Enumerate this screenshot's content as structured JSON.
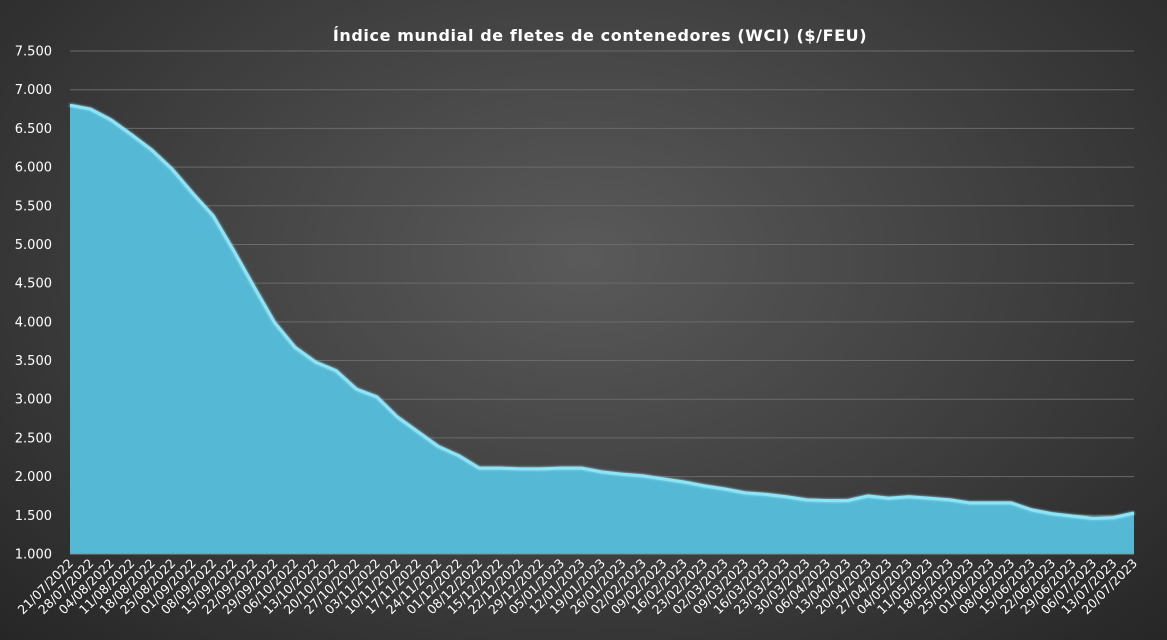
{
  "chart_data": {
    "type": "area",
    "title": "Índice mundial de fletes de contenedores (WCI) ($/FEU)",
    "xlabel": "",
    "ylabel": "",
    "ylim": [
      1000,
      7500
    ],
    "yticks": [
      1000,
      1500,
      2000,
      2500,
      3000,
      3500,
      4000,
      4500,
      5000,
      5500,
      6000,
      6500,
      7000,
      7500
    ],
    "ytick_labels": [
      "1.000",
      "1.500",
      "2.000",
      "2.500",
      "3.000",
      "3.500",
      "4.000",
      "4.500",
      "5.000",
      "5.500",
      "6.000",
      "6.500",
      "7.000",
      "7.500"
    ],
    "grid": true,
    "colors": {
      "fill": "#55b8d4",
      "line": "#8ee4f7"
    },
    "x": [
      "21/07/2022",
      "28/07/2022",
      "04/08/2022",
      "11/08/2022",
      "18/08/2022",
      "25/08/2022",
      "01/09/2022",
      "08/09/2022",
      "15/09/2022",
      "22/09/2022",
      "29/09/2022",
      "06/10/2022",
      "13/10/2022",
      "20/10/2022",
      "27/10/2022",
      "03/11/2022",
      "10/11/2022",
      "17/11/2022",
      "24/11/2022",
      "01/12/2022",
      "08/12/2022",
      "15/12/2022",
      "22/12/2022",
      "29/12/2022",
      "05/01/2023",
      "12/01/2023",
      "19/01/2023",
      "26/01/2023",
      "02/02/2023",
      "09/02/2023",
      "16/02/2023",
      "23/02/2023",
      "02/03/2023",
      "09/03/2023",
      "16/03/2023",
      "23/03/2023",
      "30/03/2023",
      "06/04/2023",
      "13/04/2023",
      "20/04/2023",
      "27/04/2023",
      "04/05/2023",
      "11/05/2023",
      "18/05/2023",
      "25/05/2023",
      "01/06/2023",
      "08/06/2023",
      "15/06/2023",
      "22/06/2023",
      "29/06/2023",
      "06/07/2023",
      "13/07/2023",
      "20/07/2023"
    ],
    "series": [
      {
        "values": [
          6800,
          6750,
          6610,
          6420,
          6220,
          5970,
          5660,
          5370,
          4920,
          4450,
          3990,
          3670,
          3480,
          3370,
          3130,
          3030,
          2770,
          2580,
          2390,
          2270,
          2110,
          2110,
          2100,
          2100,
          2110,
          2110,
          2060,
          2030,
          2010,
          1970,
          1930,
          1880,
          1840,
          1790,
          1770,
          1740,
          1700,
          1690,
          1690,
          1750,
          1720,
          1740,
          1720,
          1700,
          1660,
          1660,
          1660,
          1570,
          1520,
          1490,
          1460,
          1470,
          1530
        ]
      }
    ]
  }
}
